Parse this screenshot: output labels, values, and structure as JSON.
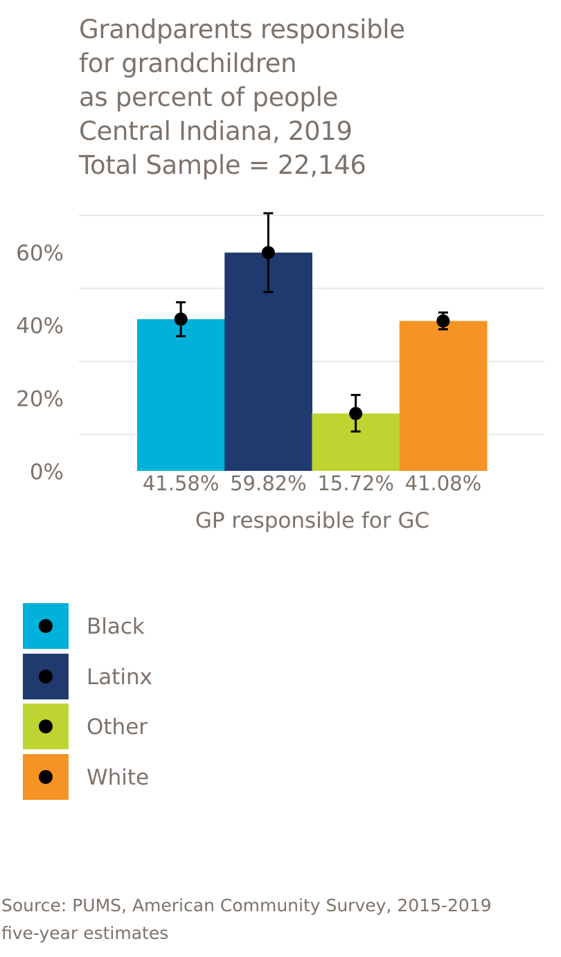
{
  "title_lines": [
    "Grandparents responsible",
    "for grandchildren",
    "as percent of people",
    "Central Indiana, 2019",
    "Total Sample = 22,146"
  ],
  "source_lines": [
    "Source: PUMS, American Community Survey, 2015-2019",
    "five-year estimates"
  ],
  "colors": {
    "Black": "#00b2db",
    "Latinx": "#203a6f",
    "Other": "#bed431",
    "White": "#f59324",
    "error_bar": "#000000",
    "text": "#7d736b",
    "grid": "#e7e7e7"
  },
  "chart_data": {
    "type": "bar",
    "title": "Grandparents responsible for grandchildren as percent of people Central Indiana, 2019 Total Sample = 22,146",
    "xlabel": "GP responsible for GC",
    "ylabel": "",
    "categories": [
      "GP responsible for GC"
    ],
    "ylim": [
      0,
      70
    ],
    "yticks": [
      0,
      20,
      40,
      60
    ],
    "ytick_labels": [
      "0%",
      "20%",
      "40%",
      "60%"
    ],
    "grid": true,
    "legend_position": "bottom-left",
    "series": [
      {
        "name": "Black",
        "value": 41.58,
        "label": "41.58%",
        "error_low": 36.9,
        "error_high": 46.2
      },
      {
        "name": "Latinx",
        "value": 59.82,
        "label": "59.82%",
        "error_low": 49.0,
        "error_high": 70.6
      },
      {
        "name": "Other",
        "value": 15.72,
        "label": "15.72%",
        "error_low": 10.8,
        "error_high": 20.8
      },
      {
        "name": "White",
        "value": 41.08,
        "label": "41.08%",
        "error_low": 38.8,
        "error_high": 43.4
      }
    ]
  }
}
